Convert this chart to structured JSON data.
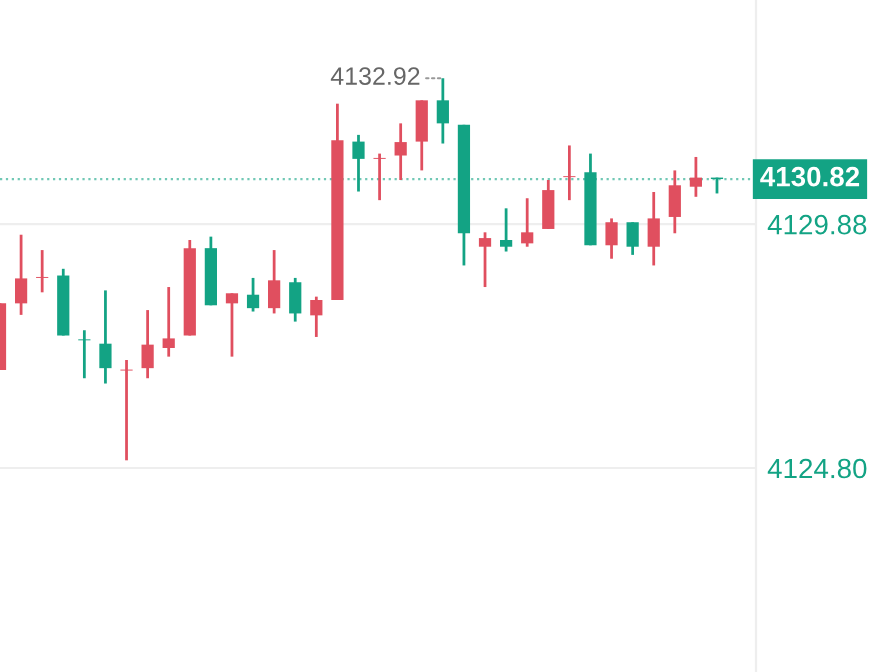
{
  "chart_data": {
    "type": "candlestick",
    "categories": [
      null,
      null,
      null,
      null,
      null,
      null,
      null,
      null,
      null,
      null,
      null,
      null,
      null,
      null,
      null,
      null,
      null,
      null,
      null,
      null,
      null,
      null,
      null,
      null,
      null,
      null,
      null,
      null,
      null,
      null,
      null,
      null,
      null,
      null,
      null
    ],
    "ohlc": [
      [
        4126.84,
        4128.23,
        4126.84,
        4128.23
      ],
      [
        4128.23,
        4129.66,
        4127.99,
        4128.75
      ],
      [
        4128.76,
        4129.34,
        4128.46,
        4128.78
      ],
      [
        4128.81,
        4128.95,
        4127.56,
        4127.56
      ],
      [
        4127.48,
        4127.67,
        4126.67,
        4127.46
      ],
      [
        4127.39,
        4128.5,
        4126.56,
        4126.88
      ],
      [
        4126.83,
        4127.05,
        4124.96,
        4126.85
      ],
      [
        4126.88,
        4128.09,
        4126.67,
        4127.37
      ],
      [
        4127.3,
        4128.57,
        4127.12,
        4127.5
      ],
      [
        4127.56,
        4129.55,
        4127.56,
        4129.38
      ],
      [
        4129.38,
        4129.62,
        4128.19,
        4128.19
      ],
      [
        4128.23,
        4128.44,
        4127.12,
        4128.44
      ],
      [
        4128.41,
        4128.76,
        4128.06,
        4128.13
      ],
      [
        4128.13,
        4129.34,
        4128.02,
        4128.71
      ],
      [
        4128.67,
        4128.76,
        4127.85,
        4128.02
      ],
      [
        4127.98,
        4128.37,
        4127.53,
        4128.3
      ],
      [
        4128.3,
        4132.39,
        4128.3,
        4131.63
      ],
      [
        4131.6,
        4131.74,
        4130.56,
        4131.24
      ],
      [
        4131.24,
        4131.35,
        4130.38,
        4131.26
      ],
      [
        4131.31,
        4131.98,
        4130.8,
        4131.59
      ],
      [
        4131.6,
        4132.46,
        4131.0,
        4132.46
      ],
      [
        4132.46,
        4132.92,
        4131.56,
        4131.98
      ],
      [
        4131.95,
        4131.95,
        4129.02,
        4129.69
      ],
      [
        4129.41,
        4129.71,
        4128.57,
        4129.59
      ],
      [
        4129.55,
        4130.21,
        4129.31,
        4129.41
      ],
      [
        4129.48,
        4130.42,
        4129.41,
        4129.71
      ],
      [
        4129.78,
        4130.8,
        4129.78,
        4130.59
      ],
      [
        4130.86,
        4131.52,
        4130.38,
        4130.88
      ],
      [
        4130.96,
        4131.35,
        4129.44,
        4129.44
      ],
      [
        4129.44,
        4130.0,
        4129.16,
        4129.92
      ],
      [
        4129.92,
        4129.92,
        4129.24,
        4129.41
      ],
      [
        4129.41,
        4130.55,
        4129.02,
        4130.0
      ],
      [
        4130.03,
        4131.0,
        4129.69,
        4130.69
      ],
      [
        4130.66,
        4131.28,
        4130.45,
        4130.85
      ],
      [
        4130.85,
        4130.85,
        4130.52,
        4130.82
      ]
    ],
    "colors": [
      "#e04f5f",
      "#e04f5f",
      "#e04f5f",
      "#13a384",
      "#13a384",
      "#13a384",
      "#e04f5f",
      "#e04f5f",
      "#e04f5f",
      "#e04f5f",
      "#13a384",
      "#e04f5f",
      "#13a384",
      "#e04f5f",
      "#13a384",
      "#e04f5f",
      "#e04f5f",
      "#13a384",
      "#e04f5f",
      "#e04f5f",
      "#e04f5f",
      "#13a384",
      "#13a384",
      "#e04f5f",
      "#13a384",
      "#e04f5f",
      "#e04f5f",
      "#e04f5f",
      "#13a384",
      "#e04f5f",
      "#13a384",
      "#e04f5f",
      "#e04f5f",
      "#e04f5f",
      "#13a384"
    ],
    "ylim": [
      4120.55,
      4134.55
    ],
    "yticks": [
      {
        "value": 4124.8,
        "label": "4124.80"
      },
      4129.88
    ],
    "grid": "y",
    "tick_labels": "y",
    "ref_lines": [
      {
        "axis": "y",
        "value": 4130.82,
        "label": "4130.82",
        "color": "#13a384",
        "line_style": "dotted"
      }
    ],
    "annotations": [
      "4132.92"
    ]
  }
}
